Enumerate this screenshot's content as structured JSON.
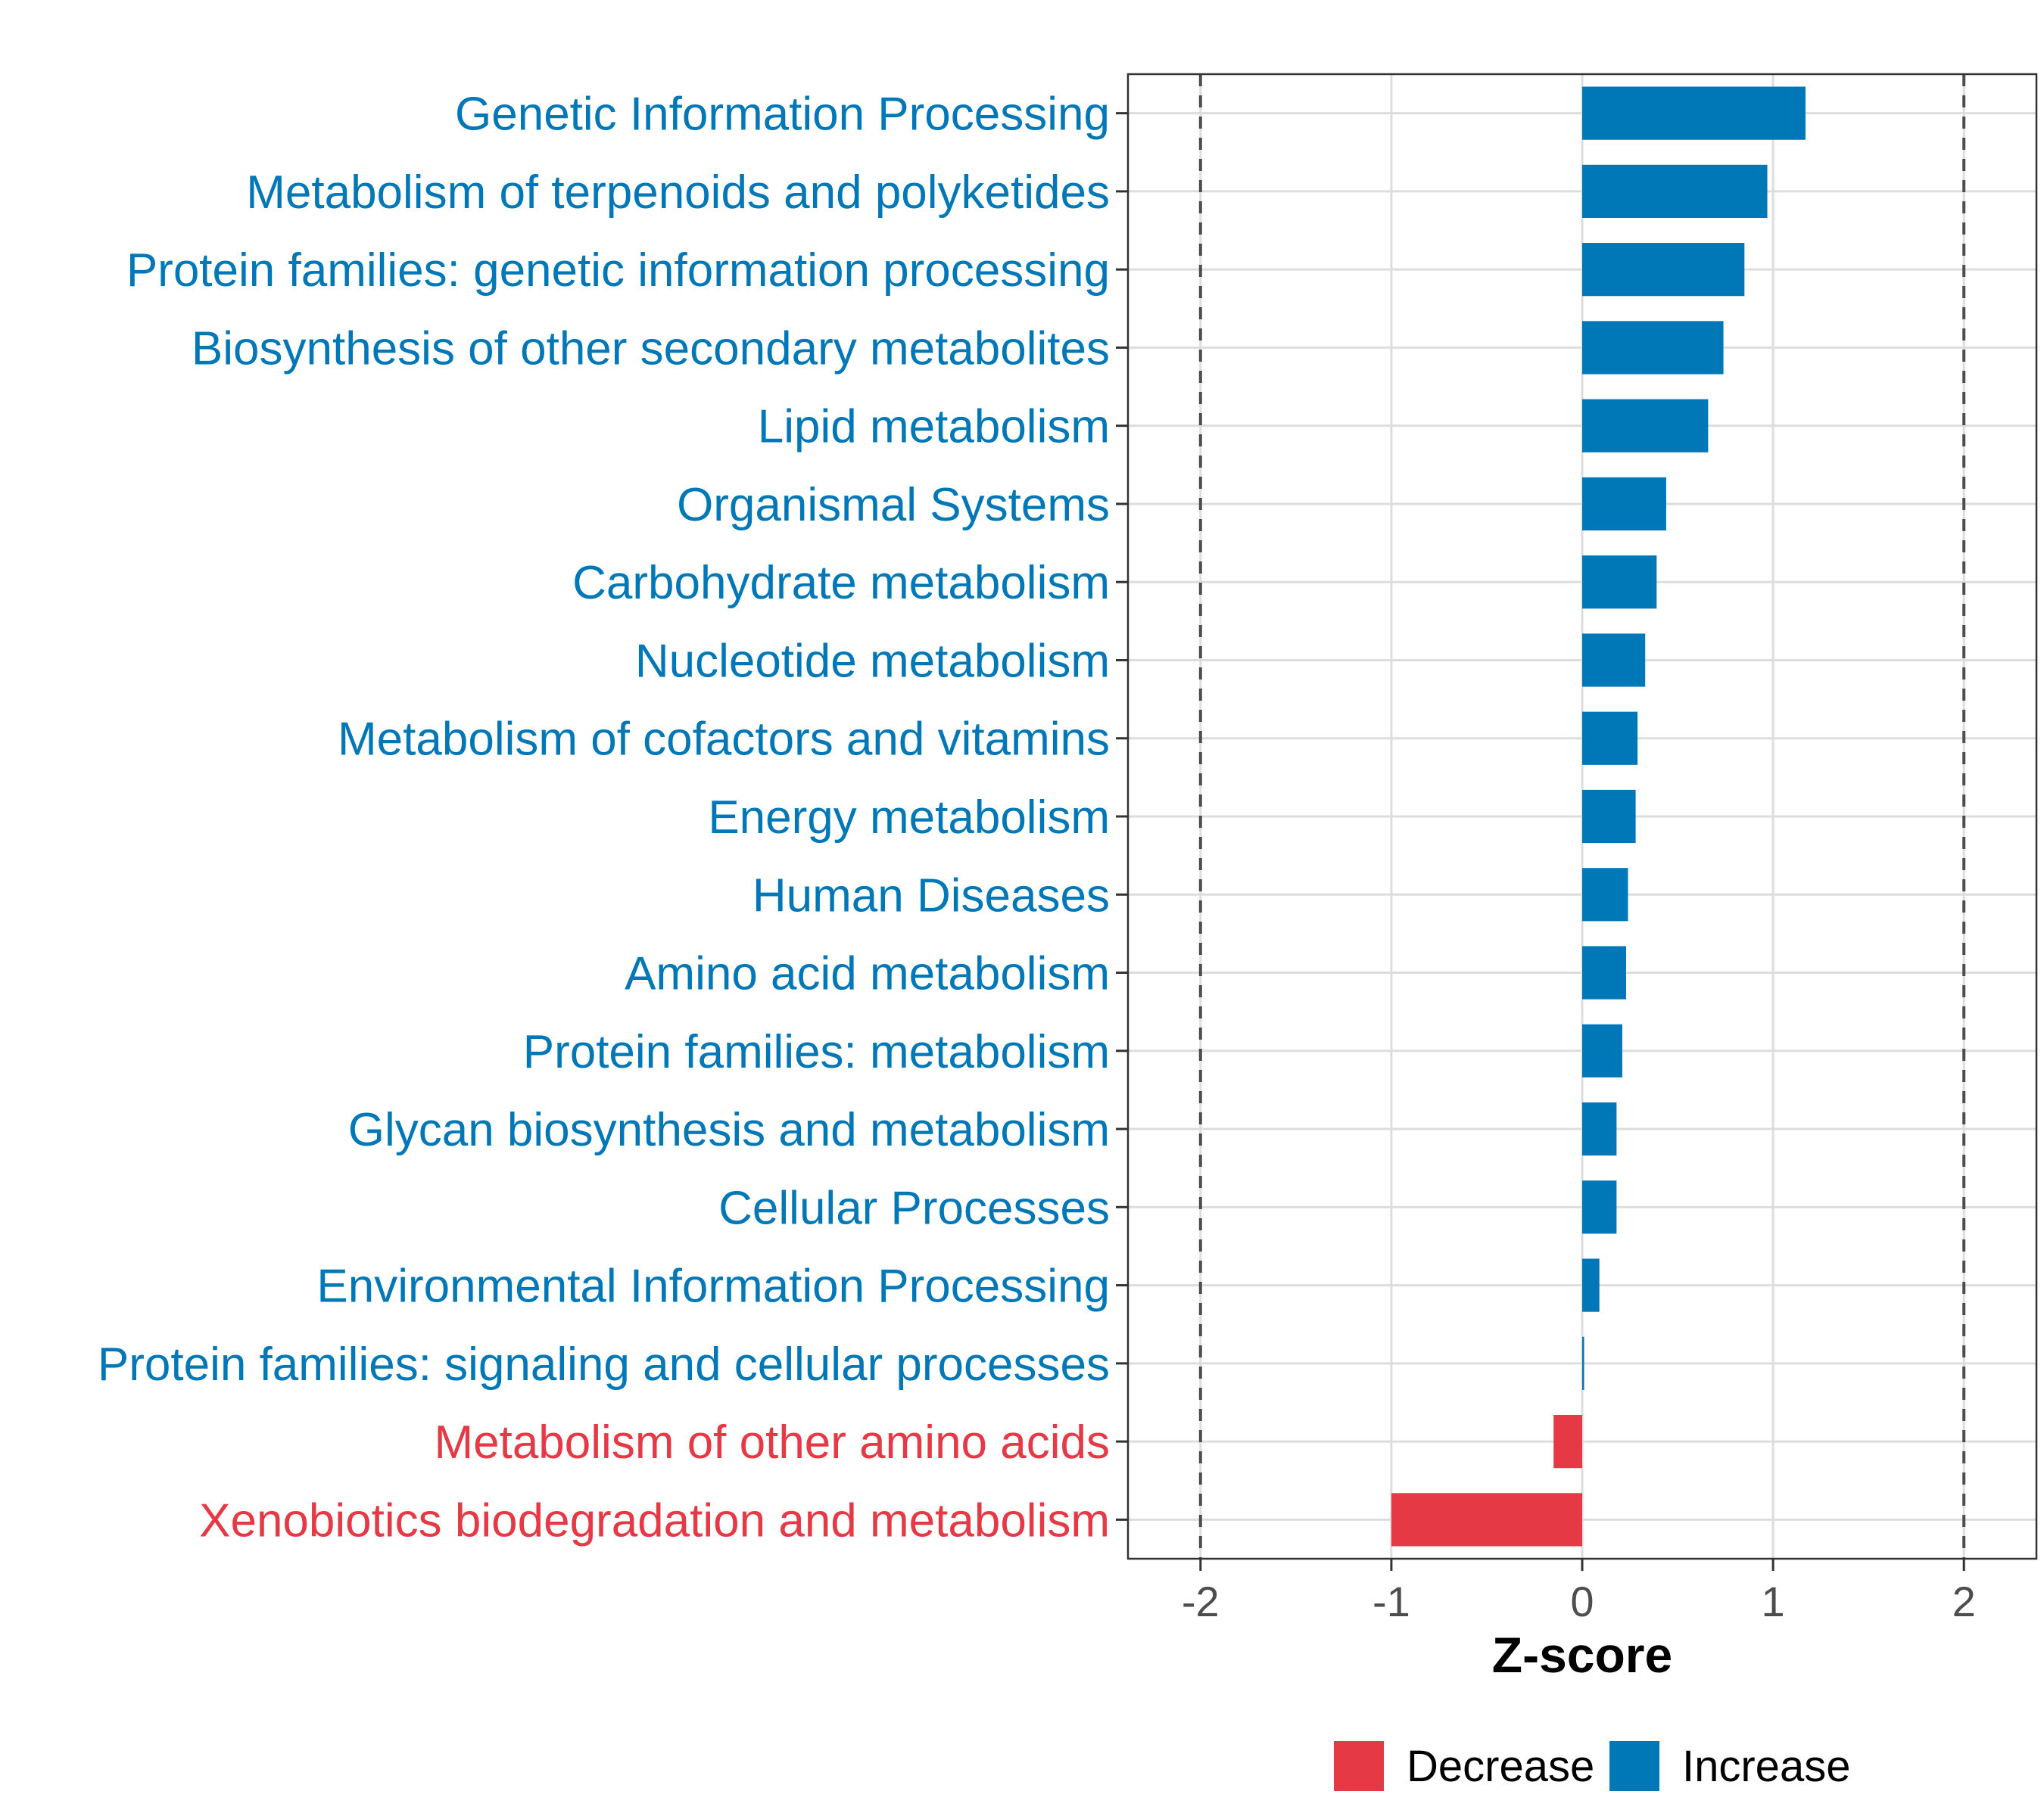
{
  "chart_data": {
    "type": "bar",
    "orientation": "horizontal",
    "title": "",
    "xlabel": "Z-score",
    "ylabel": "",
    "xlim": [
      -2.38,
      2.38
    ],
    "xticks": [
      "-2",
      "-1",
      "0",
      "1",
      "2"
    ],
    "xtick_values": [
      -2,
      -1,
      0,
      1,
      2
    ],
    "reference_lines": [
      -2,
      2
    ],
    "grid": true,
    "categories": [
      "Genetic Information Processing",
      "Metabolism of terpenoids and polyketides",
      "Protein families: genetic information processing",
      "Biosynthesis of other secondary metabolites",
      "Lipid metabolism",
      "Organismal Systems",
      "Carbohydrate metabolism",
      "Nucleotide metabolism",
      "Metabolism of cofactors and vitamins",
      "Energy metabolism",
      "Human Diseases",
      "Amino acid metabolism",
      "Protein families: metabolism",
      "Glycan biosynthesis and metabolism",
      "Cellular Processes",
      "Environmental Information Processing",
      "Protein families: signaling and cellular processes",
      "Metabolism of other amino acids",
      "Xenobiotics biodegradation and metabolism"
    ],
    "values": [
      1.17,
      0.97,
      0.85,
      0.74,
      0.66,
      0.44,
      0.39,
      0.33,
      0.29,
      0.28,
      0.24,
      0.23,
      0.21,
      0.18,
      0.18,
      0.09,
      0.01,
      -0.15,
      -1.0
    ],
    "groups": [
      "Increase",
      "Increase",
      "Increase",
      "Increase",
      "Increase",
      "Increase",
      "Increase",
      "Increase",
      "Increase",
      "Increase",
      "Increase",
      "Increase",
      "Increase",
      "Increase",
      "Increase",
      "Increase",
      "Increase",
      "Decrease",
      "Decrease"
    ],
    "legend": {
      "position": "bottom",
      "items": [
        {
          "label": "Decrease",
          "color": "#E63946"
        },
        {
          "label": "Increase",
          "color": "#0077B6"
        }
      ]
    },
    "colors": {
      "Increase": "#0077B6",
      "Decrease": "#E63946"
    }
  }
}
